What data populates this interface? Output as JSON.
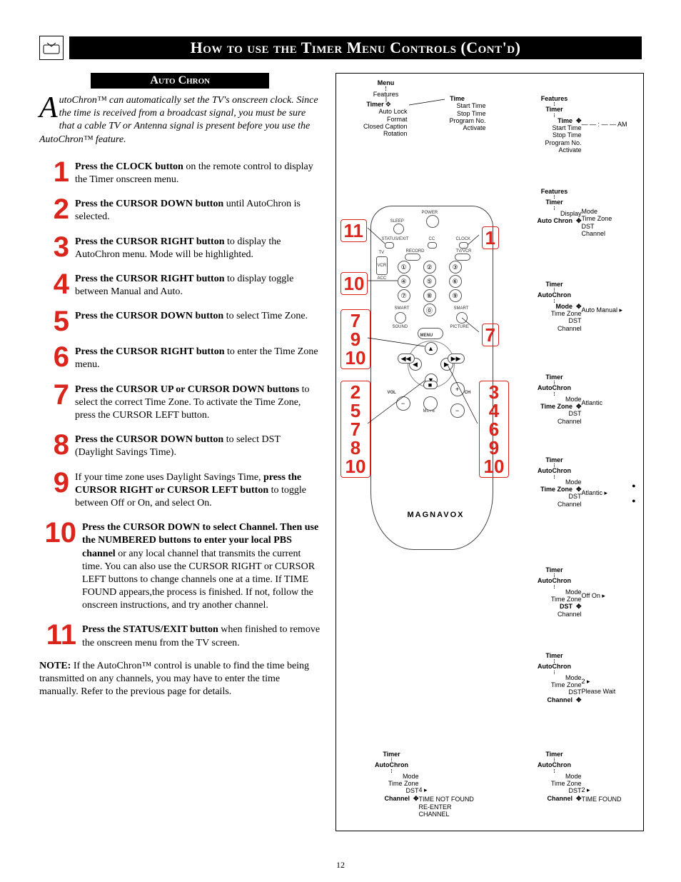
{
  "page_number": "12",
  "header": {
    "title": "How to use the Timer Menu Controls (Cont'd)"
  },
  "section_title": "Auto Chron",
  "intro": {
    "dropcap": "A",
    "text": "utoChron™ can automatically set the TV's onscreen clock. Since the time is received from a broadcast signal, you must be sure that a cable TV or Antenna signal is present before you use the AutoChron™ feature."
  },
  "steps": [
    {
      "n": "1",
      "html": "<b>Press the CLOCK button</b> on the remote control to display the Timer onscreen menu."
    },
    {
      "n": "2",
      "html": "<b>Press the CURSOR DOWN button</b> until AutoChron is selected."
    },
    {
      "n": "3",
      "html": "<b>Press the CURSOR RIGHT button</b> to display the AutoChron menu. Mode will be highlighted."
    },
    {
      "n": "4",
      "html": "<b>Press the CURSOR RIGHT button</b> to display toggle between Manual and Auto."
    },
    {
      "n": "5",
      "html": "<b>Press the CURSOR DOWN button</b> to select Time Zone."
    },
    {
      "n": "6",
      "html": "<b>Press the CURSOR RIGHT button</b> to enter the Time Zone menu."
    },
    {
      "n": "7",
      "html": "<b>Press the CURSOR UP or CURSOR DOWN buttons</b> to select the correct Time Zone. To activate the Time Zone, press the CURSOR LEFT button."
    },
    {
      "n": "8",
      "html": "<b>Press the CURSOR DOWN button</b> to select DST (Daylight Savings Time)."
    },
    {
      "n": "9",
      "html": "If your time zone uses Daylight Savings Time, <b>press the CURSOR RIGHT or CURSOR LEFT button</b> to toggle between Off or On, and select On."
    },
    {
      "n": "10",
      "html": "<b>Press the CURSOR DOWN to select Channel. Then use the NUMBERED buttons to enter your local PBS channel</b> or any local channel that transmits the current time.  You can also use the CURSOR RIGHT or CURSOR LEFT buttons to change channels one at a time. If TIME FOUND appears,the process is finished. If not, follow the onscreen instructions, and try another channel."
    },
    {
      "n": "11",
      "html": "<b>Press the STATUS/EXIT button</b> when finished to remove the onscreen menu from the TV screen."
    }
  ],
  "note": "<b>NOTE:</b> If the AutoChron™ control is unable to find the time being transmitted on any channels, you may have to enter the time manually. Refer to the previous page for details.",
  "right": {
    "top_menus": {
      "menu": {
        "title": "Menu",
        "items": [
          "Features"
        ]
      },
      "timer": {
        "title": "Timer",
        "items": [
          "Auto Lock",
          "Format",
          "Closed Caption",
          "Rotation"
        ]
      },
      "time": {
        "title": "Time",
        "items": [
          "Start Time",
          "Stop Time",
          "Program No.",
          "Activate"
        ]
      }
    },
    "side_menus": [
      {
        "title": "Features",
        "sub": "Timer",
        "items_left": [
          "Time",
          "Start Time",
          "Stop Time",
          "Program No.",
          "Activate"
        ],
        "right": "— — : — —   AM",
        "hl": "Time"
      },
      {
        "title": "Features",
        "sub": "Timer",
        "items_left": [
          "Display",
          "Auto Chron"
        ],
        "right_items": [
          "Mode",
          "Time Zone",
          "DST",
          "Channel"
        ],
        "hl": "Auto Chron"
      },
      {
        "title": "Timer",
        "sub": "AutoChron",
        "items_left": [
          "Mode",
          "Time Zone",
          "DST",
          "Channel"
        ],
        "right": "Auto    Manual  ▸",
        "hl": "Mode"
      },
      {
        "title": "Timer",
        "sub": "AutoChron",
        "items_left": [
          "Mode",
          "Time Zone",
          "DST",
          "Channel"
        ],
        "right": "Atlantic",
        "hl": "Time Zone"
      },
      {
        "title": "Timer",
        "sub": "AutoChron",
        "items_left": [
          "Mode",
          "Time Zone",
          "DST",
          "Channel"
        ],
        "right": "Atlantic          ▸",
        "hl": "Time Zone",
        "dots": true
      },
      {
        "title": "Timer",
        "sub": "AutoChron",
        "items_left": [
          "Mode",
          "Time Zone",
          "DST",
          "Channel"
        ],
        "right": "Off      On        ▸",
        "hl": "DST"
      },
      {
        "title": "Timer",
        "sub": "AutoChron",
        "items_left": [
          "Mode",
          "Time Zone",
          "DST",
          "Channel"
        ],
        "right": "2                    ▸",
        "extra": "Please Wait",
        "hl": "Channel"
      }
    ],
    "bottom_menus": [
      {
        "title": "Timer",
        "sub": "AutoChron",
        "items_left": [
          "Mode",
          "Time Zone",
          "DST",
          "Channel"
        ],
        "right": "4                    ▸",
        "extra": "TIME NOT FOUND",
        "extra2": "RE-ENTER CHANNEL",
        "hl": "Channel"
      },
      {
        "title": "Timer",
        "sub": "AutoChron",
        "items_left": [
          "Mode",
          "Time Zone",
          "DST",
          "Channel"
        ],
        "right": "2                    ▸",
        "extra": "TIME FOUND",
        "hl": "Channel"
      }
    ],
    "remote": {
      "brand": "MAGNAVOX",
      "labels": {
        "power": "POWER",
        "sleep": "SLEEP",
        "status": "STATUS/EXIT",
        "cc": "CC",
        "clock": "CLOCK",
        "tv": "TV",
        "record": "RECORD",
        "tvvcr": "TV/VCR",
        "vcr": "VCR",
        "acc": "ACC",
        "smart1": "SMART",
        "smart2": "SMART",
        "sound": "SOUND",
        "picture": "PICTURE",
        "menu": "MENU",
        "vol": "VOL",
        "ch": "CH",
        "mute": "MUTE"
      },
      "callouts_left_single": [
        "11",
        "10"
      ],
      "callouts_left_stack1": [
        "7",
        "9",
        "10"
      ],
      "callouts_left_stack2": [
        "2",
        "5",
        "7",
        "8",
        "10"
      ],
      "callouts_right_single": [
        "1",
        "7"
      ],
      "callouts_right_stack": [
        "3",
        "4",
        "6",
        "9",
        "10"
      ]
    }
  },
  "colors": {
    "accent_red": "#d9251c",
    "black": "#000000",
    "text": "#000000",
    "grey": "#555555"
  }
}
